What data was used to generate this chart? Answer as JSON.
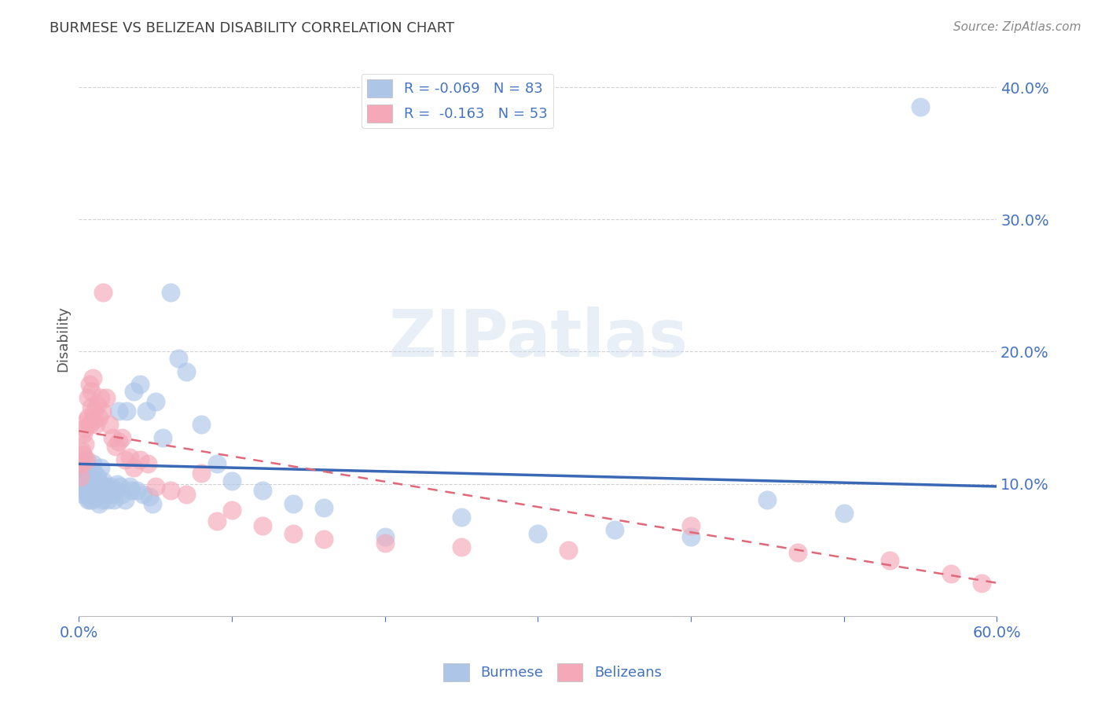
{
  "title": "BURMESE VS BELIZEAN DISABILITY CORRELATION CHART",
  "source": "Source: ZipAtlas.com",
  "ylabel": "Disability",
  "watermark": "ZIPatlas",
  "legend": [
    {
      "label": "R = -0.069   N = 83",
      "color": "#adc6e8"
    },
    {
      "label": "R =  -0.163   N = 53",
      "color": "#f4a8b8"
    }
  ],
  "legend_labels": [
    "Burmese",
    "Belizeans"
  ],
  "burmese_color": "#adc6e8",
  "belizean_color": "#f4a8b8",
  "burmese_line_color": "#3a68b5",
  "belizean_line_color": "#e06878",
  "axis_color": "#4472c4",
  "grid_color": "#cccccc",
  "title_color": "#404040",
  "source_color": "#888888",
  "xmin": 0.0,
  "xmax": 0.6,
  "ymin": 0.0,
  "ymax": 0.42,
  "yticks": [
    0.1,
    0.2,
    0.3,
    0.4
  ],
  "ytick_labels": [
    "10.0%",
    "20.0%",
    "30.0%",
    "40.0%"
  ],
  "xtick_positions": [
    0.0,
    0.6
  ],
  "xtick_labels": [
    "0.0%",
    "60.0%"
  ],
  "burmese_x": [
    0.001,
    0.001,
    0.002,
    0.002,
    0.002,
    0.003,
    0.003,
    0.003,
    0.004,
    0.004,
    0.004,
    0.005,
    0.005,
    0.005,
    0.006,
    0.006,
    0.006,
    0.007,
    0.007,
    0.007,
    0.008,
    0.008,
    0.008,
    0.009,
    0.009,
    0.01,
    0.01,
    0.01,
    0.011,
    0.011,
    0.012,
    0.012,
    0.013,
    0.013,
    0.014,
    0.014,
    0.015,
    0.015,
    0.016,
    0.016,
    0.017,
    0.018,
    0.018,
    0.019,
    0.02,
    0.021,
    0.022,
    0.023,
    0.024,
    0.025,
    0.026,
    0.027,
    0.028,
    0.03,
    0.031,
    0.033,
    0.034,
    0.036,
    0.038,
    0.04,
    0.042,
    0.044,
    0.046,
    0.048,
    0.05,
    0.055,
    0.06,
    0.065,
    0.07,
    0.08,
    0.09,
    0.1,
    0.12,
    0.14,
    0.16,
    0.2,
    0.25,
    0.3,
    0.35,
    0.4,
    0.45,
    0.5,
    0.55
  ],
  "burmese_y": [
    0.11,
    0.098,
    0.105,
    0.095,
    0.115,
    0.108,
    0.098,
    0.092,
    0.103,
    0.096,
    0.118,
    0.11,
    0.095,
    0.1,
    0.112,
    0.092,
    0.088,
    0.095,
    0.102,
    0.088,
    0.105,
    0.092,
    0.098,
    0.088,
    0.115,
    0.1,
    0.092,
    0.108,
    0.09,
    0.098,
    0.095,
    0.105,
    0.098,
    0.085,
    0.1,
    0.112,
    0.095,
    0.088,
    0.098,
    0.102,
    0.095,
    0.092,
    0.098,
    0.088,
    0.095,
    0.098,
    0.092,
    0.088,
    0.095,
    0.1,
    0.155,
    0.098,
    0.092,
    0.088,
    0.155,
    0.098,
    0.095,
    0.17,
    0.095,
    0.175,
    0.092,
    0.155,
    0.09,
    0.085,
    0.162,
    0.135,
    0.245,
    0.195,
    0.185,
    0.145,
    0.115,
    0.102,
    0.095,
    0.085,
    0.082,
    0.06,
    0.075,
    0.062,
    0.065,
    0.06,
    0.088,
    0.078,
    0.385
  ],
  "belizean_x": [
    0.001,
    0.001,
    0.002,
    0.002,
    0.003,
    0.003,
    0.004,
    0.004,
    0.005,
    0.005,
    0.006,
    0.006,
    0.007,
    0.007,
    0.008,
    0.008,
    0.009,
    0.009,
    0.01,
    0.011,
    0.012,
    0.013,
    0.014,
    0.015,
    0.016,
    0.018,
    0.02,
    0.022,
    0.024,
    0.026,
    0.028,
    0.03,
    0.033,
    0.036,
    0.04,
    0.045,
    0.05,
    0.06,
    0.07,
    0.08,
    0.09,
    0.1,
    0.12,
    0.14,
    0.16,
    0.2,
    0.25,
    0.32,
    0.4,
    0.47,
    0.53,
    0.57,
    0.59
  ],
  "belizean_y": [
    0.115,
    0.105,
    0.125,
    0.115,
    0.138,
    0.122,
    0.142,
    0.13,
    0.148,
    0.118,
    0.165,
    0.15,
    0.175,
    0.145,
    0.158,
    0.17,
    0.148,
    0.18,
    0.155,
    0.145,
    0.16,
    0.15,
    0.165,
    0.155,
    0.245,
    0.165,
    0.145,
    0.135,
    0.128,
    0.132,
    0.135,
    0.118,
    0.12,
    0.112,
    0.118,
    0.115,
    0.098,
    0.095,
    0.092,
    0.108,
    0.072,
    0.08,
    0.068,
    0.062,
    0.058,
    0.055,
    0.052,
    0.05,
    0.068,
    0.048,
    0.042,
    0.032,
    0.025
  ]
}
